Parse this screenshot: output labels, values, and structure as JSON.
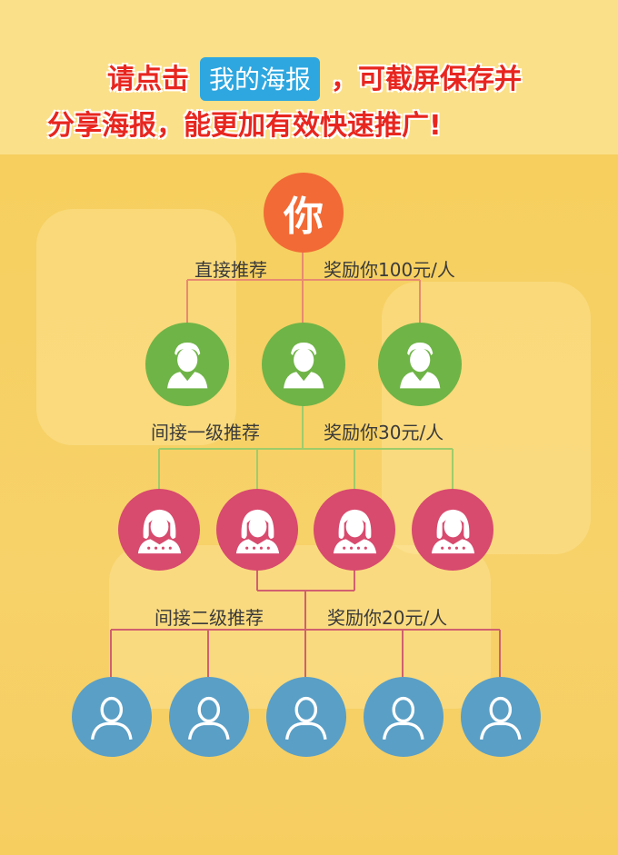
{
  "headline": {
    "line1_before": "请点击",
    "chip": "我的海报",
    "line1_after": "，可截屏保存并",
    "line2": "分享海报，能更加有效快速推广!"
  },
  "root": {
    "label": "你"
  },
  "levels": [
    {
      "left": "直接推荐",
      "right": "奖励你100元/人",
      "count": 3,
      "color": "#6fb447",
      "icon": "male-user-icon"
    },
    {
      "left": "间接一级推荐",
      "right": "奖励你30元/人",
      "count": 4,
      "color": "#d84a6e",
      "icon": "female-user-icon"
    },
    {
      "left": "间接二级推荐",
      "right": "奖励你20元/人",
      "count": 5,
      "color": "#5a9fc6",
      "icon": "user-outline-icon"
    }
  ],
  "colors": {
    "root": "#f26a35",
    "line_level1": "#e88a70",
    "line_level2": "#9fcc6a",
    "line_level3": "#d06070"
  }
}
